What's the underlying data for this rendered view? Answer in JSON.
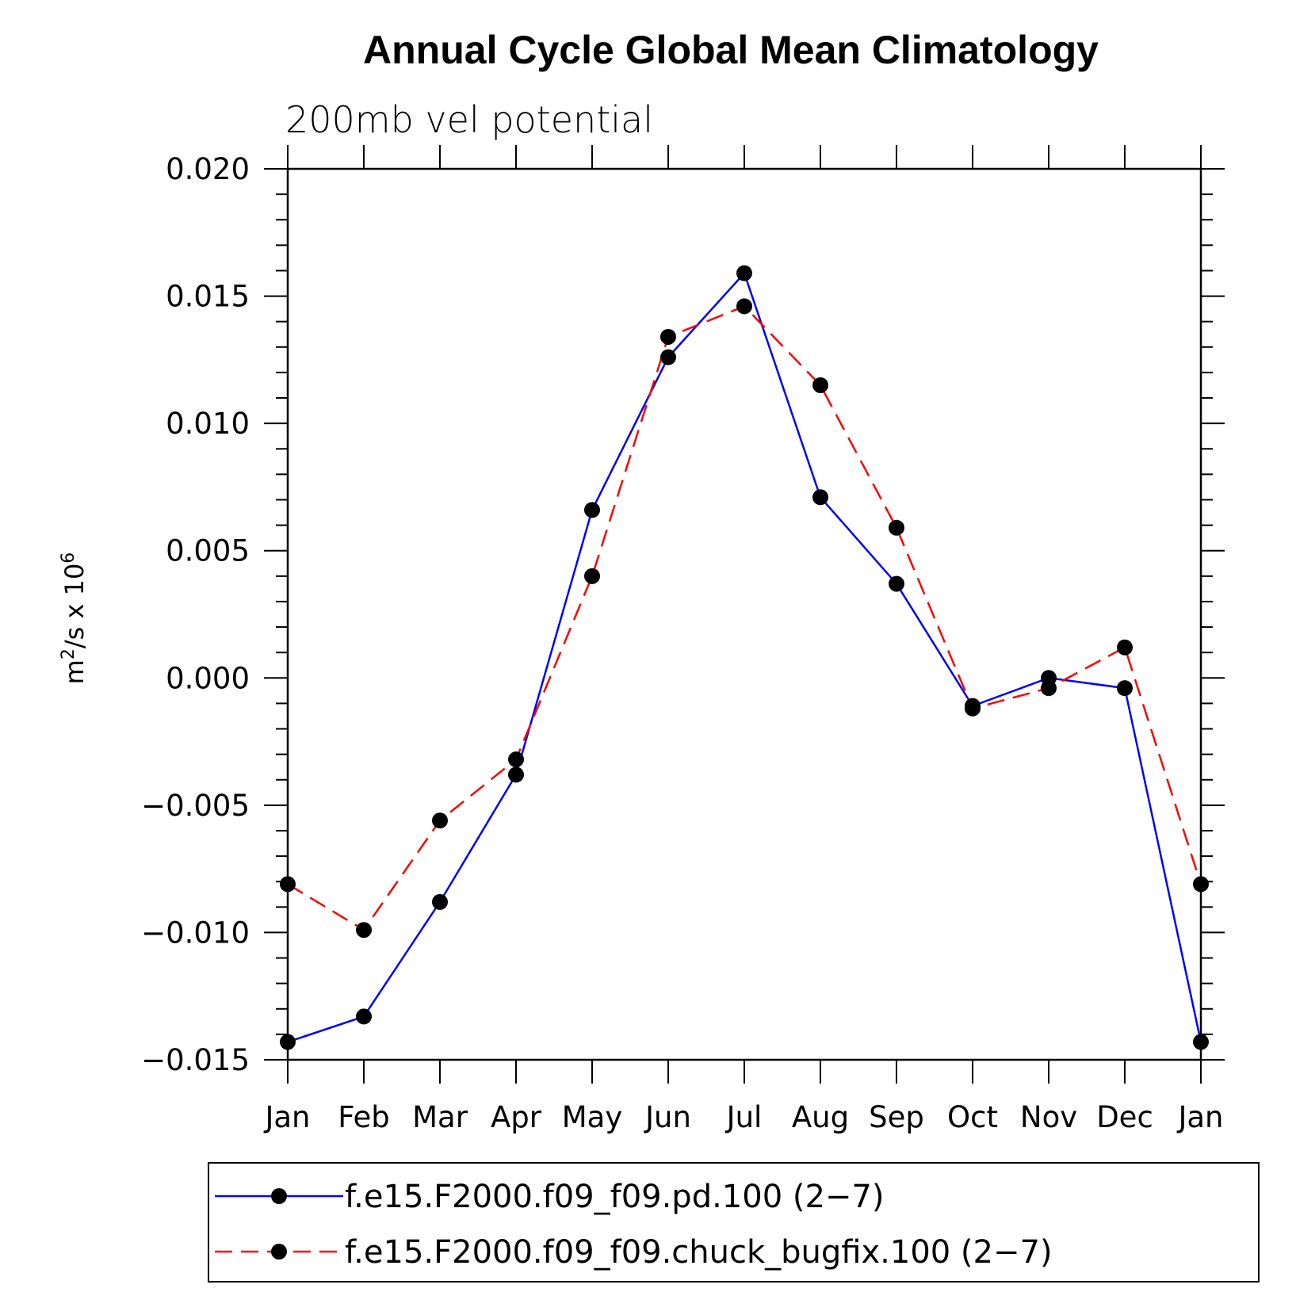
{
  "chart_data": {
    "type": "line",
    "title": "Annual Cycle Global Mean Climatology",
    "subtitle": "200mb vel potential",
    "ylabel": {
      "base": "m",
      "sup1": "2",
      "mid": "/s x 10",
      "sup2": "6"
    },
    "xlabel": "",
    "ylim": [
      -0.015,
      0.02
    ],
    "yticks": [
      -0.015,
      -0.01,
      -0.005,
      0.0,
      0.005,
      0.01,
      0.015,
      0.02
    ],
    "ytick_labels": [
      "−0.015",
      "−0.010",
      "−0.005",
      "0.000",
      "0.005",
      "0.010",
      "0.015",
      "0.020"
    ],
    "categories": [
      "Jan",
      "Feb",
      "Mar",
      "Apr",
      "May",
      "Jun",
      "Jul",
      "Aug",
      "Sep",
      "Oct",
      "Nov",
      "Dec",
      "Jan"
    ],
    "grid": false,
    "legend_position": "bottom",
    "series": [
      {
        "name": "f.e15.F2000.f09_f09.pd.100 (2−7)",
        "color": "#0000ff",
        "style": "solid",
        "marker_color": "#000000",
        "values": [
          -0.0143,
          -0.0133,
          -0.0088,
          -0.0038,
          0.0066,
          0.0126,
          0.0159,
          0.0071,
          0.0037,
          -0.0011,
          0.0,
          -0.0004,
          -0.0143
        ]
      },
      {
        "name": "f.e15.F2000.f09_f09.chuck_bugfix.100 (2−7)",
        "color": "#ff0000",
        "style": "dashed",
        "marker_color": "#000000",
        "values": [
          -0.0081,
          -0.0099,
          -0.0056,
          -0.0032,
          0.004,
          0.0134,
          0.0146,
          0.0115,
          0.0059,
          -0.0012,
          -0.0004,
          0.0012,
          -0.0081
        ]
      }
    ]
  }
}
